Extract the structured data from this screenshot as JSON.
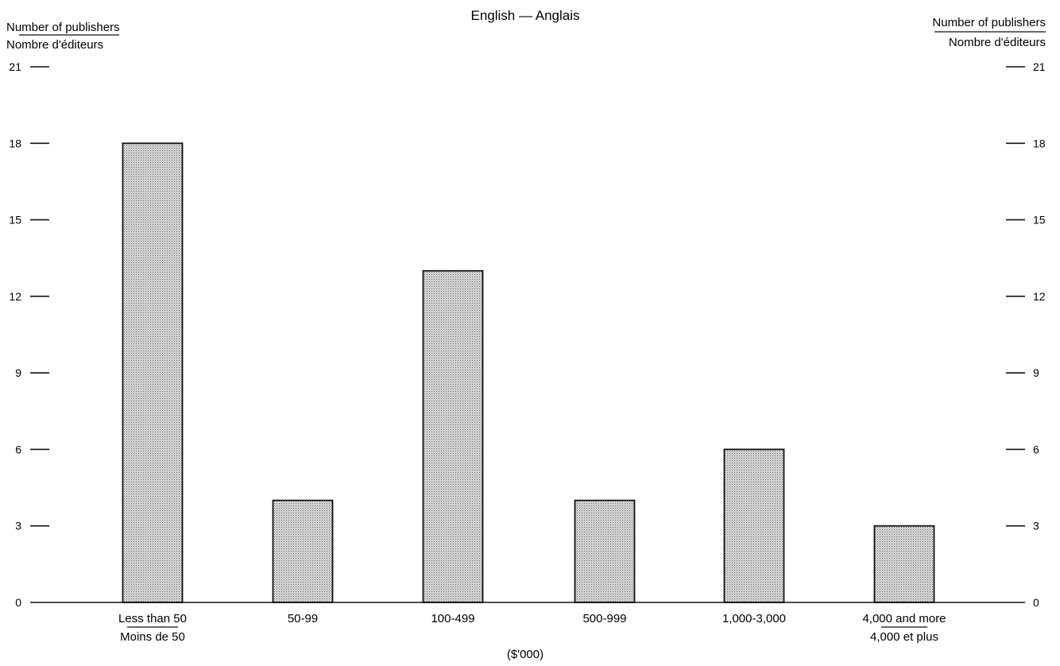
{
  "chart_data": {
    "type": "bar",
    "title": "English — Anglais",
    "ylabel_left": {
      "en": "Number of publishers",
      "fr": "Nombre d'éditeurs"
    },
    "ylabel_right": {
      "en": "Number of publishers",
      "fr": "Nombre d'éditeurs"
    },
    "xlabel": "($'000)",
    "categories": [
      {
        "en": "Less than 50",
        "fr": "Moins de 50"
      },
      {
        "en": "50-99",
        "fr": ""
      },
      {
        "en": "100-499",
        "fr": ""
      },
      {
        "en": "500-999",
        "fr": ""
      },
      {
        "en": "1,000-3,000",
        "fr": ""
      },
      {
        "en": "4,000 and more",
        "fr": "4,000 et plus"
      }
    ],
    "values": [
      18,
      4,
      13,
      4,
      6,
      3
    ],
    "ylim": [
      0,
      21
    ],
    "yticks": [
      0,
      3,
      6,
      9,
      12,
      15,
      18,
      21
    ],
    "grid": false,
    "bar_fill": "#c8c8c8",
    "bar_stroke": "#111111"
  }
}
